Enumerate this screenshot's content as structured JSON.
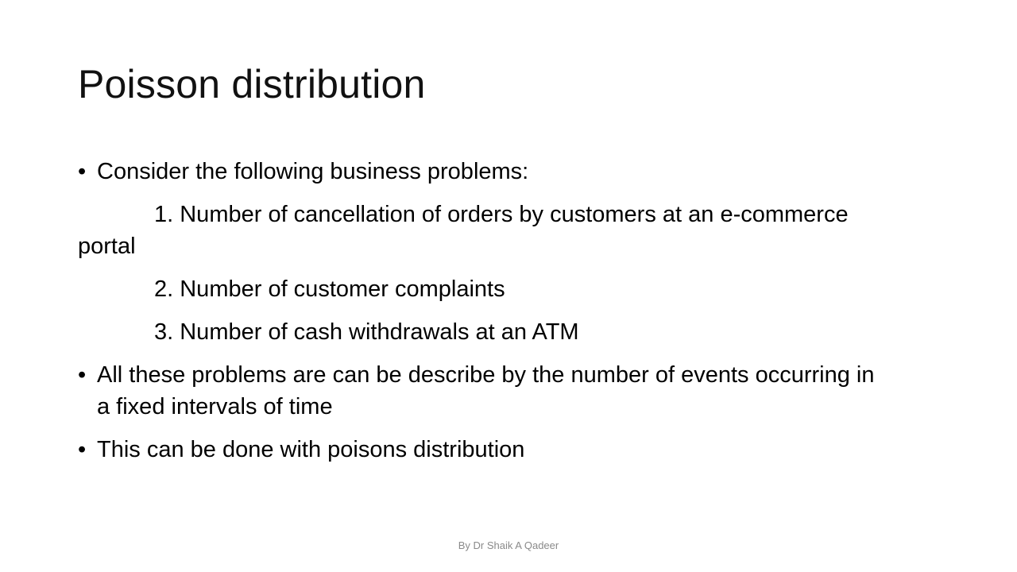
{
  "slide": {
    "title": "Poisson distribution",
    "bullet_symbol": "•",
    "bullets": [
      "Consider the following business problems:",
      "All these problems are can be describe by the number of events occurring in a fixed intervals of time",
      "This can be done with poisons distribution"
    ],
    "numbered_items": [
      "1. Number of cancellation of orders by customers at an e-commerce portal",
      "2. Number of customer complaints",
      "3. Number of cash withdrawals at an ATM"
    ],
    "footer": "By Dr Shaik A Qadeer"
  }
}
